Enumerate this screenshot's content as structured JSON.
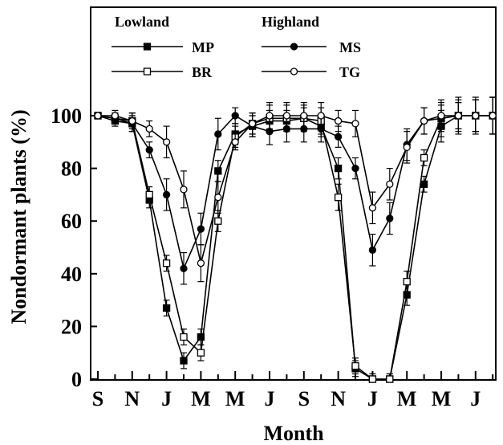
{
  "chart_data": {
    "type": "line",
    "title": "",
    "xlabel": "Month",
    "ylabel": "Nondormant plants (%)",
    "ylim": [
      0,
      100
    ],
    "yticks": [
      0,
      20,
      40,
      60,
      80,
      100
    ],
    "xlim": [
      0,
      24
    ],
    "xticks": [
      {
        "x": 0,
        "label": "S"
      },
      {
        "x": 2,
        "label": "N"
      },
      {
        "x": 4,
        "label": "J"
      },
      {
        "x": 6,
        "label": "M"
      },
      {
        "x": 8,
        "label": "M"
      },
      {
        "x": 10,
        "label": "J"
      },
      {
        "x": 12,
        "label": "S"
      },
      {
        "x": 14,
        "label": "N"
      },
      {
        "x": 16,
        "label": "J"
      },
      {
        "x": 18,
        "label": "M"
      },
      {
        "x": 20,
        "label": "M"
      },
      {
        "x": 22,
        "label": "J"
      }
    ],
    "grid": false,
    "legend_position": "top-left",
    "legend_groups": [
      {
        "title": "Lowland",
        "series": [
          "MP",
          "BR"
        ]
      },
      {
        "title": "Highland",
        "series": [
          "MS",
          "TG"
        ]
      }
    ],
    "series": [
      {
        "name": "MP",
        "marker": "filled-square",
        "points": [
          [
            0,
            100
          ],
          [
            1,
            98
          ],
          [
            2,
            97
          ],
          [
            3,
            68
          ],
          [
            4,
            27
          ],
          [
            5,
            7
          ],
          [
            6,
            16
          ],
          [
            7,
            79
          ],
          [
            8,
            93
          ],
          [
            9,
            96
          ],
          [
            10,
            98
          ],
          [
            11,
            98
          ],
          [
            12,
            99
          ],
          [
            13,
            96
          ],
          [
            14,
            80
          ],
          [
            15,
            4
          ],
          [
            16,
            0
          ],
          [
            17,
            0
          ],
          [
            18,
            32
          ],
          [
            19,
            74
          ],
          [
            20,
            96
          ],
          [
            21,
            100
          ],
          [
            22,
            100
          ],
          [
            23,
            100
          ]
        ],
        "errors": [
          0,
          2,
          3,
          3,
          3,
          3,
          3,
          4,
          4,
          4,
          4,
          4,
          4,
          4,
          4,
          3,
          2,
          2,
          4,
          3,
          6,
          6,
          6,
          7
        ]
      },
      {
        "name": "BR",
        "marker": "open-square",
        "points": [
          [
            0,
            100
          ],
          [
            1,
            99
          ],
          [
            2,
            98
          ],
          [
            3,
            70
          ],
          [
            4,
            44
          ],
          [
            5,
            16
          ],
          [
            6,
            10
          ],
          [
            7,
            60
          ],
          [
            8,
            92
          ],
          [
            9,
            97
          ],
          [
            10,
            99
          ],
          [
            11,
            99
          ],
          [
            12,
            99
          ],
          [
            13,
            98
          ],
          [
            14,
            69
          ],
          [
            15,
            5
          ],
          [
            16,
            0
          ],
          [
            17,
            0
          ],
          [
            18,
            37
          ],
          [
            19,
            84
          ],
          [
            20,
            99
          ],
          [
            21,
            100
          ],
          [
            22,
            100
          ],
          [
            23,
            100
          ]
        ],
        "errors": [
          0,
          2,
          3,
          3,
          3,
          3,
          3,
          4,
          4,
          4,
          5,
          5,
          5,
          5,
          5,
          3,
          2,
          2,
          4,
          3,
          7,
          7,
          7,
          7
        ]
      },
      {
        "name": "MS",
        "marker": "filled-circle",
        "points": [
          [
            0,
            100
          ],
          [
            1,
            99
          ],
          [
            2,
            97
          ],
          [
            3,
            87
          ],
          [
            4,
            70
          ],
          [
            5,
            42
          ],
          [
            6,
            57
          ],
          [
            7,
            93
          ],
          [
            8,
            100
          ],
          [
            9,
            96
          ],
          [
            10,
            94
          ],
          [
            11,
            95
          ],
          [
            12,
            95
          ],
          [
            13,
            95
          ],
          [
            14,
            92
          ],
          [
            15,
            80
          ],
          [
            16,
            49
          ],
          [
            17,
            61
          ],
          [
            18,
            89
          ],
          [
            19,
            98
          ],
          [
            20,
            99
          ],
          [
            21,
            100
          ],
          [
            22,
            100
          ],
          [
            23,
            100
          ]
        ],
        "errors": [
          0,
          2,
          3,
          3,
          6,
          6,
          6,
          6,
          3,
          4,
          5,
          5,
          5,
          5,
          4,
          4,
          6,
          6,
          6,
          5,
          5,
          5,
          6,
          7
        ]
      },
      {
        "name": "TG",
        "marker": "open-circle",
        "points": [
          [
            0,
            100
          ],
          [
            1,
            100
          ],
          [
            2,
            98
          ],
          [
            3,
            95
          ],
          [
            4,
            90
          ],
          [
            5,
            72
          ],
          [
            6,
            44
          ],
          [
            7,
            69
          ],
          [
            8,
            90
          ],
          [
            9,
            97
          ],
          [
            10,
            100
          ],
          [
            11,
            100
          ],
          [
            12,
            100
          ],
          [
            13,
            100
          ],
          [
            14,
            98
          ],
          [
            15,
            97
          ],
          [
            16,
            65
          ],
          [
            17,
            74
          ],
          [
            18,
            88
          ],
          [
            19,
            98
          ],
          [
            20,
            100
          ],
          [
            21,
            100
          ],
          [
            22,
            100
          ],
          [
            23,
            100
          ]
        ],
        "errors": [
          0,
          2,
          3,
          3,
          6,
          7,
          7,
          6,
          3,
          4,
          5,
          5,
          5,
          5,
          4,
          5,
          6,
          6,
          6,
          5,
          5,
          5,
          6,
          7
        ]
      }
    ]
  }
}
